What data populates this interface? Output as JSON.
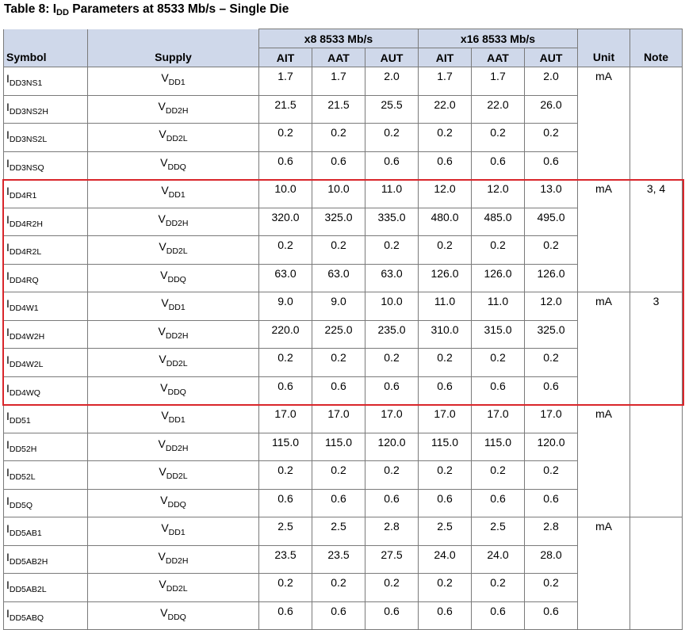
{
  "caption": {
    "prefix": "Table 8: I",
    "sub": "DD",
    "suffix": " Parameters at 8533 Mb/s – Single Die"
  },
  "headers": {
    "symbol": "Symbol",
    "supply": "Supply",
    "group_x8": "x8 8533 Mb/s",
    "group_x16": "x16 8533 Mb/s",
    "ait": "AIT",
    "aat": "AAT",
    "aut": "AUT",
    "unit": "Unit",
    "note": "Note"
  },
  "groups": [
    {
      "unit": "mA",
      "note": "",
      "rows": [
        {
          "sym_main": "I",
          "sym_sub": "DD3NS1",
          "sup_main": "V",
          "sup_sub": "DD1",
          "vals": [
            "1.7",
            "1.7",
            "2.0",
            "1.7",
            "1.7",
            "2.0"
          ]
        },
        {
          "sym_main": "I",
          "sym_sub": "DD3NS2H",
          "sup_main": "V",
          "sup_sub": "DD2H",
          "vals": [
            "21.5",
            "21.5",
            "25.5",
            "22.0",
            "22.0",
            "26.0"
          ]
        },
        {
          "sym_main": "I",
          "sym_sub": "DD3NS2L",
          "sup_main": "V",
          "sup_sub": "DD2L",
          "vals": [
            "0.2",
            "0.2",
            "0.2",
            "0.2",
            "0.2",
            "0.2"
          ]
        },
        {
          "sym_main": "I",
          "sym_sub": "DD3NSQ",
          "sup_main": "V",
          "sup_sub": "DDQ",
          "vals": [
            "0.6",
            "0.6",
            "0.6",
            "0.6",
            "0.6",
            "0.6"
          ]
        }
      ]
    },
    {
      "unit": "mA",
      "note": "3, 4",
      "rows": [
        {
          "sym_main": "I",
          "sym_sub": "DD4R1",
          "sup_main": "V",
          "sup_sub": "DD1",
          "vals": [
            "10.0",
            "10.0",
            "11.0",
            "12.0",
            "12.0",
            "13.0"
          ]
        },
        {
          "sym_main": "I",
          "sym_sub": "DD4R2H",
          "sup_main": "V",
          "sup_sub": "DD2H",
          "vals": [
            "320.0",
            "325.0",
            "335.0",
            "480.0",
            "485.0",
            "495.0"
          ]
        },
        {
          "sym_main": "I",
          "sym_sub": "DD4R2L",
          "sup_main": "V",
          "sup_sub": "DD2L",
          "vals": [
            "0.2",
            "0.2",
            "0.2",
            "0.2",
            "0.2",
            "0.2"
          ]
        },
        {
          "sym_main": "I",
          "sym_sub": "DD4RQ",
          "sup_main": "V",
          "sup_sub": "DDQ",
          "vals": [
            "63.0",
            "63.0",
            "63.0",
            "126.0",
            "126.0",
            "126.0"
          ]
        }
      ]
    },
    {
      "unit": "mA",
      "note": "3",
      "rows": [
        {
          "sym_main": "I",
          "sym_sub": "DD4W1",
          "sup_main": "V",
          "sup_sub": "DD1",
          "vals": [
            "9.0",
            "9.0",
            "10.0",
            "11.0",
            "11.0",
            "12.0"
          ]
        },
        {
          "sym_main": "I",
          "sym_sub": "DD4W2H",
          "sup_main": "V",
          "sup_sub": "DD2H",
          "vals": [
            "220.0",
            "225.0",
            "235.0",
            "310.0",
            "315.0",
            "325.0"
          ]
        },
        {
          "sym_main": "I",
          "sym_sub": "DD4W2L",
          "sup_main": "V",
          "sup_sub": "DD2L",
          "vals": [
            "0.2",
            "0.2",
            "0.2",
            "0.2",
            "0.2",
            "0.2"
          ]
        },
        {
          "sym_main": "I",
          "sym_sub": "DD4WQ",
          "sup_main": "V",
          "sup_sub": "DDQ",
          "vals": [
            "0.6",
            "0.6",
            "0.6",
            "0.6",
            "0.6",
            "0.6"
          ]
        }
      ]
    },
    {
      "unit": "mA",
      "note": "",
      "rows": [
        {
          "sym_main": "I",
          "sym_sub": "DD51",
          "sup_main": "V",
          "sup_sub": "DD1",
          "vals": [
            "17.0",
            "17.0",
            "17.0",
            "17.0",
            "17.0",
            "17.0"
          ]
        },
        {
          "sym_main": "I",
          "sym_sub": "DD52H",
          "sup_main": "V",
          "sup_sub": "DD2H",
          "vals": [
            "115.0",
            "115.0",
            "120.0",
            "115.0",
            "115.0",
            "120.0"
          ]
        },
        {
          "sym_main": "I",
          "sym_sub": "DD52L",
          "sup_main": "V",
          "sup_sub": "DD2L",
          "vals": [
            "0.2",
            "0.2",
            "0.2",
            "0.2",
            "0.2",
            "0.2"
          ]
        },
        {
          "sym_main": "I",
          "sym_sub": "DD5Q",
          "sup_main": "V",
          "sup_sub": "DDQ",
          "vals": [
            "0.6",
            "0.6",
            "0.6",
            "0.6",
            "0.6",
            "0.6"
          ]
        }
      ]
    },
    {
      "unit": "mA",
      "note": "",
      "rows": [
        {
          "sym_main": "I",
          "sym_sub": "DD5AB1",
          "sup_main": "V",
          "sup_sub": "DD1",
          "vals": [
            "2.5",
            "2.5",
            "2.8",
            "2.5",
            "2.5",
            "2.8"
          ]
        },
        {
          "sym_main": "I",
          "sym_sub": "DD5AB2H",
          "sup_main": "V",
          "sup_sub": "DD2H",
          "vals": [
            "23.5",
            "23.5",
            "27.5",
            "24.0",
            "24.0",
            "28.0"
          ]
        },
        {
          "sym_main": "I",
          "sym_sub": "DD5AB2L",
          "sup_main": "V",
          "sup_sub": "DD2L",
          "vals": [
            "0.2",
            "0.2",
            "0.2",
            "0.2",
            "0.2",
            "0.2"
          ]
        },
        {
          "sym_main": "I",
          "sym_sub": "DD5ABQ",
          "sup_main": "V",
          "sup_sub": "DDQ",
          "vals": [
            "0.6",
            "0.6",
            "0.6",
            "0.6",
            "0.6",
            "0.6"
          ]
        }
      ]
    }
  ],
  "colors": {
    "header_bg": "#cfd8ea",
    "highlight": "#d9262b",
    "border": "#7a7a7a"
  }
}
